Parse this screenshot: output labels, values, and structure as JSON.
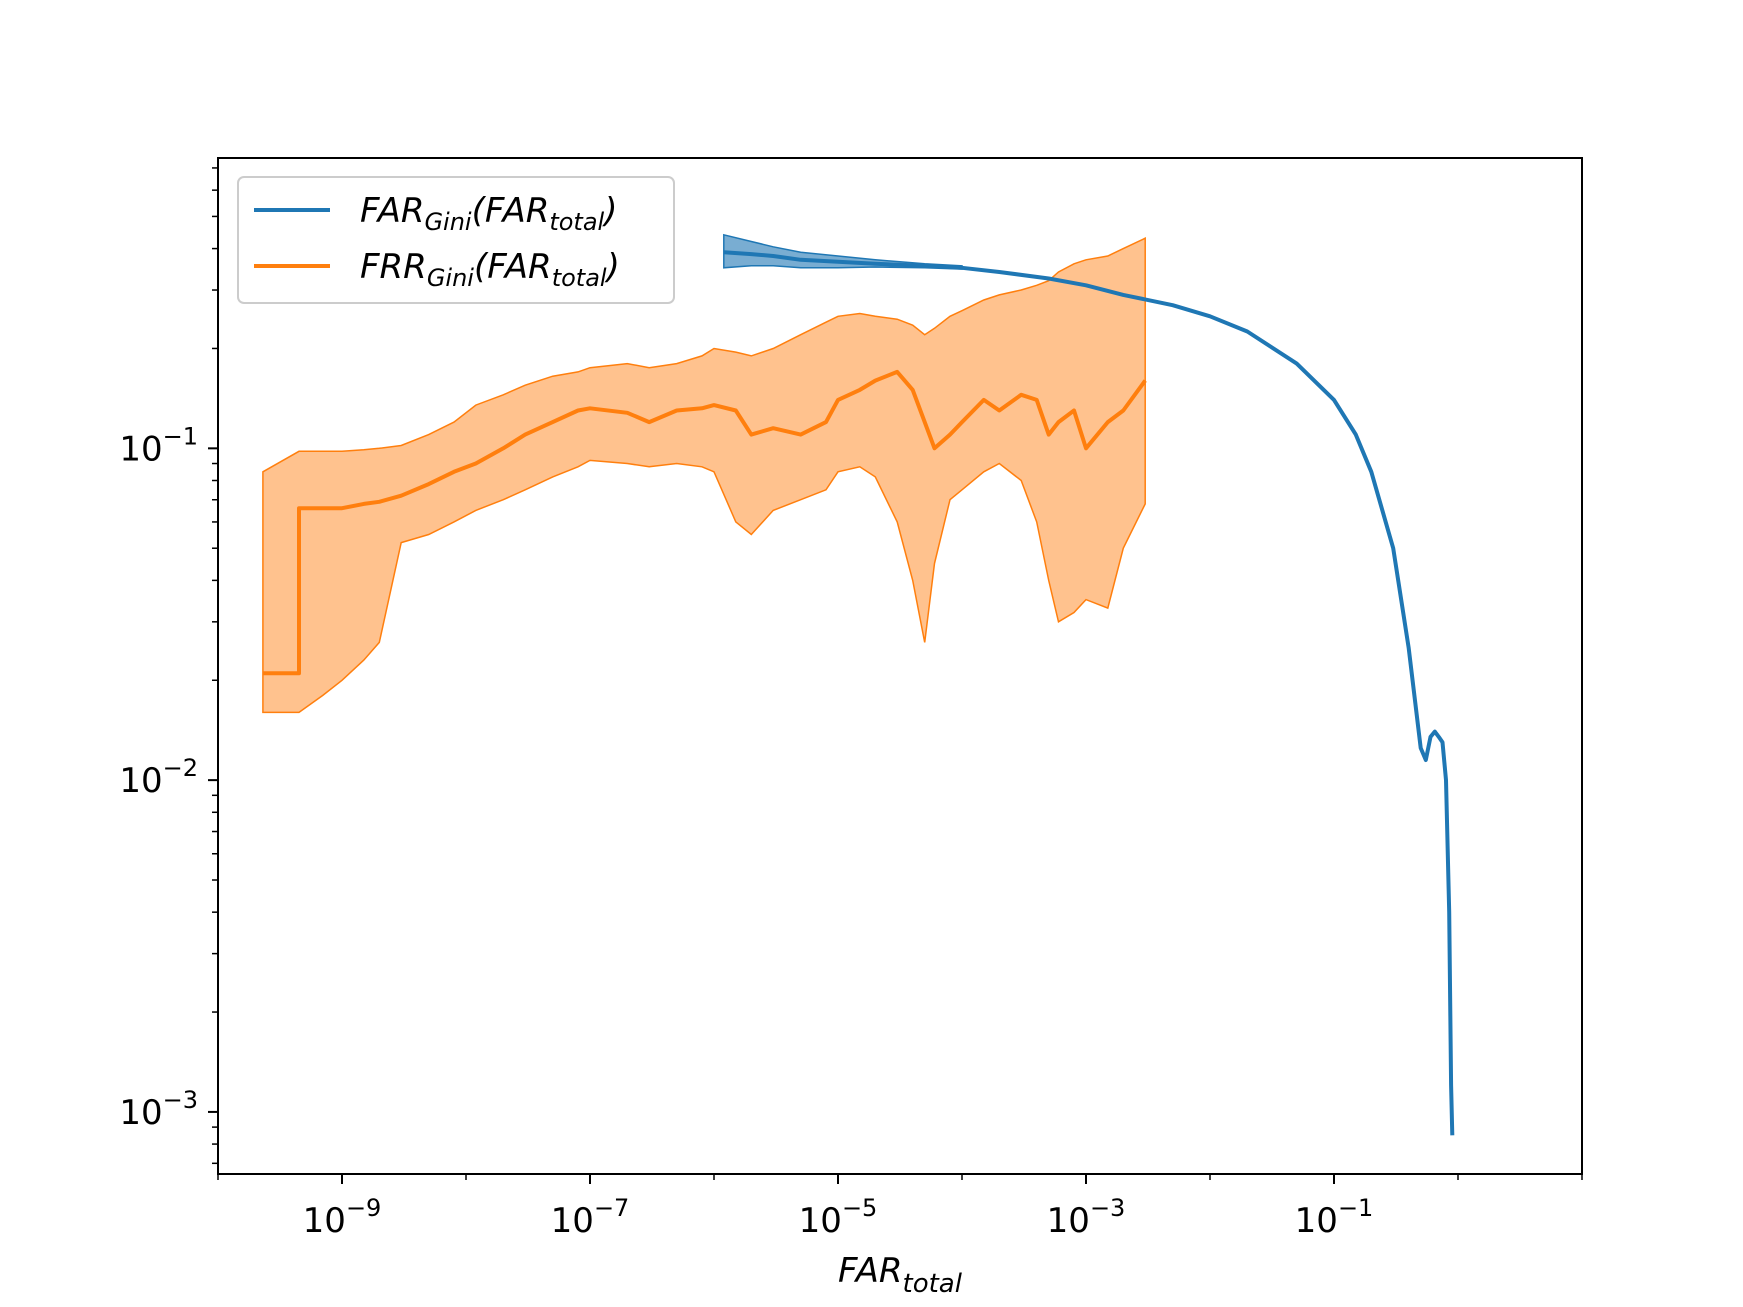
{
  "chart_data": {
    "type": "line",
    "title": "",
    "xlabel": "FAR_total",
    "ylabel": "",
    "xscale": "log",
    "yscale": "log",
    "xlim": [
      1e-10,
      10
    ],
    "ylim": [
      0.00065,
      0.75
    ],
    "grid": false,
    "legend_position": "top-left",
    "x_ticks": [
      {
        "value": 1e-09,
        "base": "10",
        "exp": "−9"
      },
      {
        "value": 1e-07,
        "base": "10",
        "exp": "−7"
      },
      {
        "value": 1e-05,
        "base": "10",
        "exp": "−5"
      },
      {
        "value": 0.001,
        "base": "10",
        "exp": "−3"
      },
      {
        "value": 0.1,
        "base": "10",
        "exp": "−1"
      }
    ],
    "y_ticks": [
      {
        "value": 0.1,
        "base": "10",
        "exp": "−1"
      },
      {
        "value": 0.01,
        "base": "10",
        "exp": "−2"
      },
      {
        "value": 0.001,
        "base": "10",
        "exp": "−3"
      }
    ],
    "series": [
      {
        "name": "FAR_Gini(FAR_total)",
        "legend_main": "FAR",
        "legend_sub": "Gini",
        "legend_arg_main": "FAR",
        "legend_arg_sub": "total",
        "color": "#1f77b4",
        "band_color": "#1f77b4",
        "x": [
          1.2e-06,
          2e-06,
          3e-06,
          5e-06,
          1e-05,
          2e-05,
          5e-05,
          0.0001,
          0.0002,
          0.0005,
          0.001,
          0.002,
          0.005,
          0.01,
          0.02,
          0.05,
          0.1,
          0.15,
          0.2,
          0.3,
          0.4,
          0.5,
          0.55,
          0.6,
          0.65,
          0.7,
          0.75,
          0.8,
          0.85,
          0.88,
          0.9
        ],
        "y": [
          0.39,
          0.385,
          0.38,
          0.37,
          0.365,
          0.36,
          0.355,
          0.35,
          0.34,
          0.325,
          0.31,
          0.29,
          0.27,
          0.25,
          0.225,
          0.18,
          0.14,
          0.11,
          0.085,
          0.05,
          0.025,
          0.0125,
          0.0115,
          0.0135,
          0.014,
          0.0135,
          0.013,
          0.01,
          0.004,
          0.0012,
          0.00085
        ],
        "band_x": [
          1.2e-06,
          2e-06,
          3e-06,
          5e-06,
          1e-05,
          2e-05,
          5e-05,
          0.0001
        ],
        "band_upper": [
          0.44,
          0.42,
          0.405,
          0.39,
          0.38,
          0.37,
          0.36,
          0.355
        ],
        "band_lower": [
          0.35,
          0.355,
          0.355,
          0.35,
          0.35,
          0.352,
          0.35,
          0.347
        ]
      },
      {
        "name": "FRR_Gini(FAR_total)",
        "legend_main": "FRR",
        "legend_sub": "Gini",
        "legend_arg_main": "FAR",
        "legend_arg_sub": "total",
        "color": "#ff7f0e",
        "band_color": "#ffbb82",
        "x": [
          2.3e-10,
          4.5e-10,
          4.5e-10,
          1e-09,
          1.5e-09,
          2e-09,
          3e-09,
          5e-09,
          8e-09,
          1.2e-08,
          2e-08,
          3e-08,
          5e-08,
          8e-08,
          1e-07,
          2e-07,
          3e-07,
          5e-07,
          8e-07,
          1e-06,
          1.5e-06,
          2e-06,
          3e-06,
          5e-06,
          8e-06,
          1e-05,
          1.5e-05,
          2e-05,
          3e-05,
          4e-05,
          5e-05,
          6e-05,
          8e-05,
          0.0001,
          0.00015,
          0.0002,
          0.0003,
          0.0004,
          0.0005,
          0.0006,
          0.0008,
          0.001,
          0.0015,
          0.002,
          0.003
        ],
        "y": [
          0.021,
          0.021,
          0.066,
          0.066,
          0.068,
          0.069,
          0.072,
          0.078,
          0.085,
          0.09,
          0.1,
          0.11,
          0.12,
          0.13,
          0.132,
          0.128,
          0.12,
          0.13,
          0.132,
          0.135,
          0.13,
          0.11,
          0.115,
          0.11,
          0.12,
          0.14,
          0.15,
          0.16,
          0.17,
          0.15,
          0.12,
          0.1,
          0.11,
          0.12,
          0.14,
          0.13,
          0.145,
          0.14,
          0.11,
          0.12,
          0.13,
          0.1,
          0.12,
          0.13,
          0.16
        ],
        "band_x": [
          2.3e-10,
          4.5e-10,
          7e-10,
          1e-09,
          1.5e-09,
          2e-09,
          3e-09,
          5e-09,
          8e-09,
          1.2e-08,
          2e-08,
          3e-08,
          5e-08,
          8e-08,
          1e-07,
          2e-07,
          3e-07,
          5e-07,
          8e-07,
          1e-06,
          1.5e-06,
          2e-06,
          3e-06,
          5e-06,
          8e-06,
          1e-05,
          1.5e-05,
          2e-05,
          3e-05,
          4e-05,
          5e-05,
          6e-05,
          8e-05,
          0.0001,
          0.00015,
          0.0002,
          0.0003,
          0.0004,
          0.0005,
          0.0006,
          0.0008,
          0.001,
          0.0015,
          0.002,
          0.003
        ],
        "band_upper": [
          0.085,
          0.098,
          0.098,
          0.098,
          0.099,
          0.1,
          0.102,
          0.11,
          0.12,
          0.135,
          0.145,
          0.155,
          0.165,
          0.17,
          0.175,
          0.18,
          0.175,
          0.18,
          0.19,
          0.2,
          0.195,
          0.19,
          0.2,
          0.22,
          0.24,
          0.25,
          0.255,
          0.25,
          0.245,
          0.235,
          0.22,
          0.23,
          0.25,
          0.26,
          0.28,
          0.29,
          0.3,
          0.31,
          0.32,
          0.34,
          0.36,
          0.37,
          0.38,
          0.4,
          0.43
        ],
        "band_lower": [
          0.016,
          0.016,
          0.018,
          0.02,
          0.023,
          0.026,
          0.052,
          0.055,
          0.06,
          0.065,
          0.07,
          0.075,
          0.082,
          0.088,
          0.092,
          0.09,
          0.088,
          0.09,
          0.088,
          0.085,
          0.06,
          0.055,
          0.065,
          0.07,
          0.075,
          0.085,
          0.088,
          0.082,
          0.06,
          0.04,
          0.026,
          0.045,
          0.07,
          0.075,
          0.085,
          0.09,
          0.08,
          0.06,
          0.04,
          0.03,
          0.032,
          0.035,
          0.033,
          0.05,
          0.068
        ]
      }
    ]
  }
}
